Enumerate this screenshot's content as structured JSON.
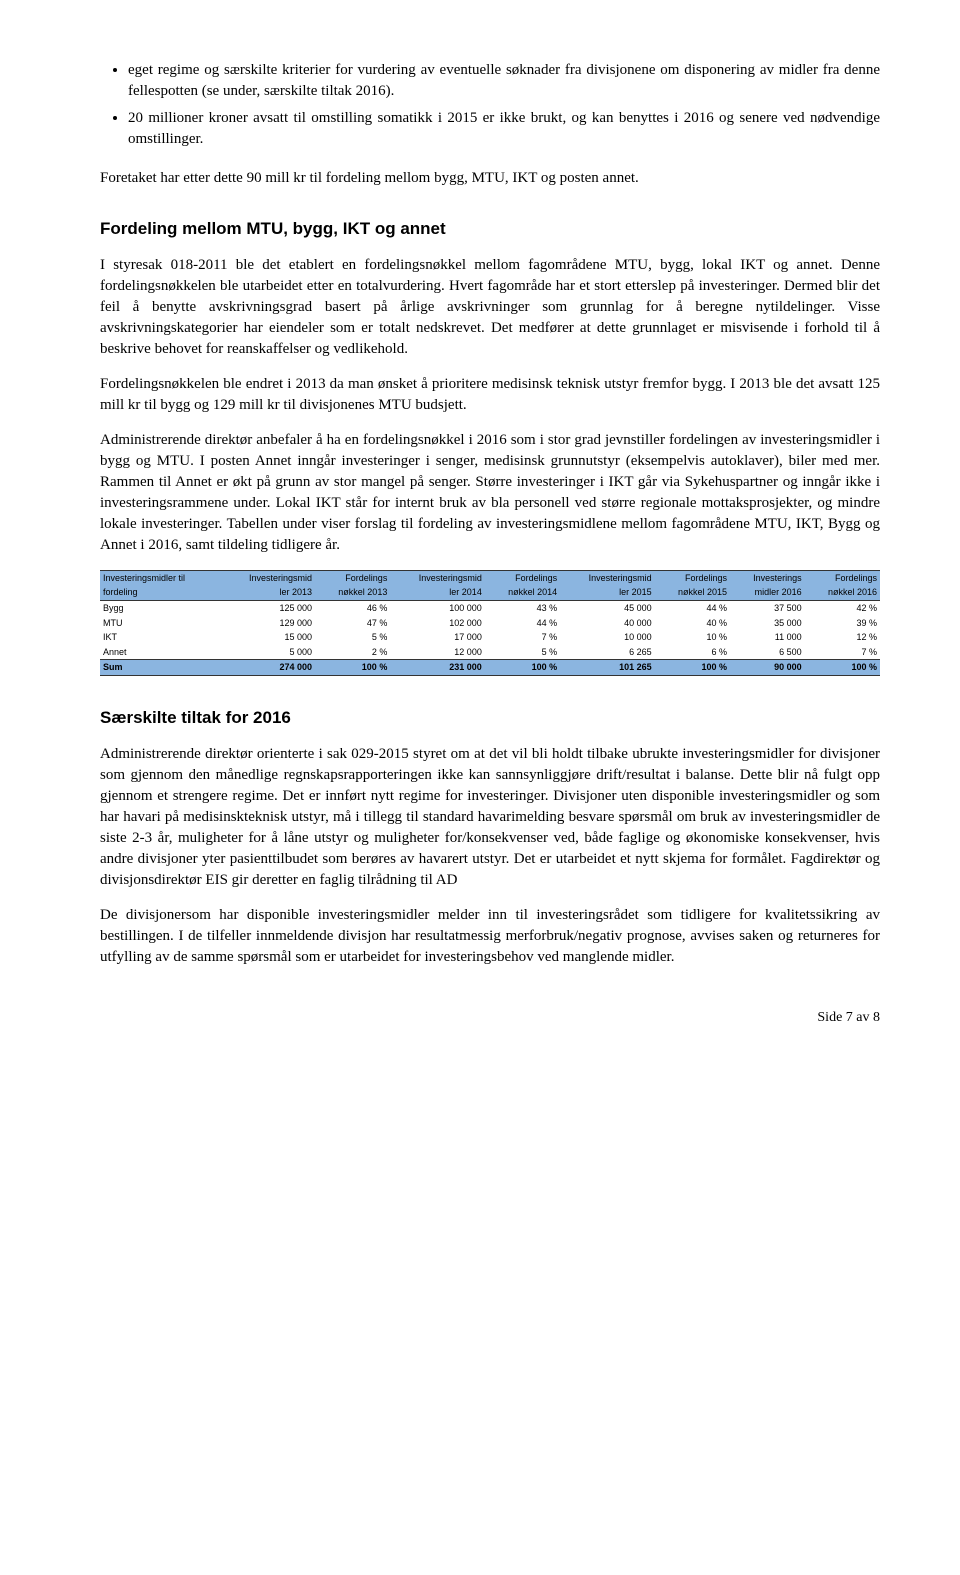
{
  "bullets": [
    "eget regime og særskilte kriterier for vurdering av eventuelle søknader fra divisjonene om disponering av midler fra denne fellespotten (se under, særskilte tiltak 2016).",
    "20 millioner kroner avsatt til omstilling somatikk i 2015 er ikke brukt, og kan benyttes i 2016 og senere ved nødvendige omstillinger."
  ],
  "p_after_bullets": "Foretaket har etter dette 90 mill kr til fordeling mellom bygg, MTU, IKT og posten annet.",
  "section1": {
    "heading": "Fordeling mellom MTU, bygg, IKT og annet",
    "para1": "I styresak 018-2011 ble det etablert en fordelingsnøkkel mellom fagområdene MTU, bygg, lokal IKT og annet. Denne fordelingsnøkkelen ble utarbeidet etter en totalvurdering. Hvert fagområde har et stort etterslep på investeringer. Dermed blir det feil å benytte avskrivningsgrad basert på årlige avskrivninger som grunnlag for å beregne nytildelinger. Visse avskrivningskategorier har eiendeler som er totalt nedskrevet. Det medfører at dette grunnlaget er misvisende i forhold til å beskrive behovet for reanskaffelser og vedlikehold.",
    "para2": "Fordelingsnøkkelen ble endret i 2013 da man ønsket å prioritere medisinsk teknisk utstyr fremfor bygg. I 2013 ble det avsatt 125 mill kr til bygg og 129 mill kr til divisjonenes MTU budsjett.",
    "para3": "Administrerende direktør anbefaler å ha en fordelingsnøkkel i 2016 som i stor grad jevnstiller fordelingen av investeringsmidler i bygg og MTU. I posten Annet inngår investeringer i senger, medisinsk grunnutstyr (eksempelvis autoklaver), biler med mer. Rammen til Annet er økt på grunn av stor mangel på senger. Større investeringer i IKT går via Sykehuspartner og inngår ikke i investeringsrammene under. Lokal IKT står for internt bruk av bla personell ved større regionale mottaksprosjekter, og mindre lokale investeringer. Tabellen under viser forslag til fordeling av investeringsmidlene mellom fagområdene MTU, IKT, Bygg og Annet i 2016, samt tildeling tidligere år."
  },
  "table": {
    "header_row1": [
      "Investeringsmidler til",
      "Investeringsmid",
      "Fordelings",
      "Investeringsmid",
      "Fordelings",
      "Investeringsmid",
      "Fordelings",
      "Investerings",
      "Fordelings"
    ],
    "header_row2": [
      "fordeling",
      "ler 2013",
      "nøkkel 2013",
      "ler 2014",
      "nøkkel 2014",
      "ler 2015",
      "nøkkel 2015",
      "midler 2016",
      "nøkkel 2016"
    ],
    "rows": [
      [
        "Bygg",
        "125 000",
        "46 %",
        "100 000",
        "43 %",
        "45 000",
        "44 %",
        "37 500",
        "42 %"
      ],
      [
        "MTU",
        "129 000",
        "47 %",
        "102 000",
        "44 %",
        "40 000",
        "40 %",
        "35 000",
        "39 %"
      ],
      [
        "IKT",
        "15 000",
        "5 %",
        "17 000",
        "7 %",
        "10 000",
        "10 %",
        "11 000",
        "12 %"
      ],
      [
        "Annet",
        "5 000",
        "2 %",
        "12 000",
        "5 %",
        "6 265",
        "6 %",
        "6 500",
        "7 %"
      ]
    ],
    "sum": [
      "Sum",
      "274 000",
      "100 %",
      "231 000",
      "100 %",
      "101 265",
      "100 %",
      "90 000",
      "100 %"
    ]
  },
  "section2": {
    "heading": "Særskilte tiltak for 2016",
    "para1": "Administrerende direktør orienterte i sak 029-2015 styret om at det vil bli holdt tilbake ubrukte investeringsmidler for divisjoner som gjennom den månedlige regnskapsrapporteringen ikke kan sannsynliggjøre drift/resultat i balanse. Dette blir nå fulgt opp gjennom et strengere regime. Det er innført nytt regime for investeringer. Divisjoner uten disponible investeringsmidler og som har havari på medisinskteknisk utstyr, må i tillegg til standard havarimelding besvare spørsmål om bruk av investeringsmidler de siste 2-3 år, muligheter for å låne utstyr og muligheter for/konsekvenser ved, både faglige og økonomiske konsekvenser, hvis andre divisjoner yter pasienttilbudet som berøres av havarert utstyr. Det er utarbeidet et nytt skjema for formålet. Fagdirektør og divisjonsdirektør EIS gir deretter en faglig tilrådning til AD",
    "para2": "De divisjonersom har disponible investeringsmidler melder inn til investeringsrådet som tidligere for kvalitetssikring av bestillingen. I de tilfeller innmeldende divisjon har resultatmessig merforbruk/negativ prognose, avvises saken og returneres for utfylling av de samme spørsmål som er utarbeidet for investeringsbehov ved manglende midler."
  },
  "footer": "Side 7 av 8"
}
